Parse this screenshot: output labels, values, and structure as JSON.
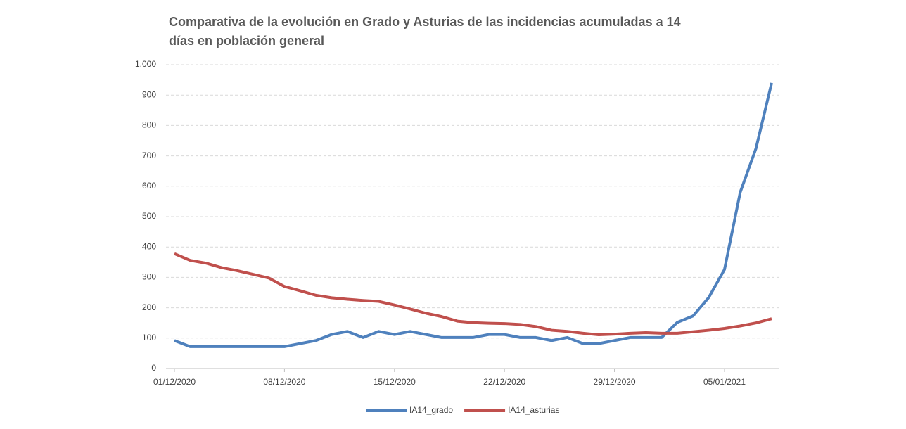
{
  "chart_data": {
    "type": "line",
    "title": "Comparativa de la evolución en Grado y Asturias de las incidencias acumuladas a 14 días en población general",
    "x": [
      "01/12/2020",
      "02/12/2020",
      "03/12/2020",
      "04/12/2020",
      "05/12/2020",
      "06/12/2020",
      "07/12/2020",
      "08/12/2020",
      "09/12/2020",
      "10/12/2020",
      "11/12/2020",
      "12/12/2020",
      "13/12/2020",
      "14/12/2020",
      "15/12/2020",
      "16/12/2020",
      "17/12/2020",
      "18/12/2020",
      "19/12/2020",
      "20/12/2020",
      "21/12/2020",
      "22/12/2020",
      "23/12/2020",
      "24/12/2020",
      "25/12/2020",
      "26/12/2020",
      "27/12/2020",
      "28/12/2020",
      "29/12/2020",
      "30/12/2020",
      "31/12/2020",
      "01/01/2021",
      "02/01/2021",
      "03/01/2021",
      "04/01/2021",
      "05/01/2021",
      "06/01/2021",
      "07/01/2021",
      "08/01/2021"
    ],
    "xticks": [
      "01/12/2020",
      "08/12/2020",
      "15/12/2020",
      "22/12/2020",
      "29/12/2020",
      "05/01/2021"
    ],
    "series": [
      {
        "name": "IA14_grado",
        "color": "#4f81bd",
        "values": [
          92,
          72,
          72,
          72,
          72,
          72,
          72,
          72,
          82,
          92,
          112,
          122,
          102,
          122,
          112,
          122,
          112,
          102,
          102,
          102,
          112,
          112,
          102,
          102,
          92,
          102,
          82,
          82,
          92,
          102,
          102,
          102,
          152,
          173,
          234,
          326,
          580,
          724,
          940
        ]
      },
      {
        "name": "IA14_asturias",
        "color": "#c0504d",
        "values": [
          378,
          356,
          347,
          332,
          322,
          310,
          298,
          270,
          256,
          241,
          233,
          228,
          224,
          221,
          209,
          196,
          182,
          171,
          156,
          151,
          149,
          148,
          145,
          138,
          126,
          122,
          116,
          111,
          113,
          116,
          118,
          116,
          116,
          121,
          126,
          132,
          140,
          150,
          164
        ]
      }
    ],
    "ylim": [
      0,
      1000
    ],
    "yticks": [
      0,
      100,
      200,
      300,
      400,
      500,
      600,
      700,
      800,
      900,
      {
        "value": 1000,
        "label": "1.000"
      }
    ],
    "grid": true,
    "legend": "bottom"
  }
}
